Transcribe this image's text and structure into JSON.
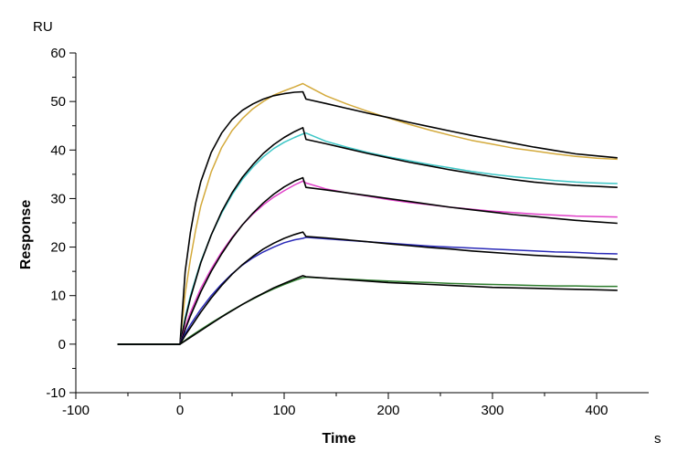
{
  "chart_data": {
    "type": "line",
    "title": "",
    "xlabel": "Time",
    "ylabel": "Response",
    "x_unit": "s",
    "y_unit": "RU",
    "xlim": [
      -100,
      450
    ],
    "ylim": [
      -10,
      60
    ],
    "x_ticks": [
      -100,
      0,
      100,
      200,
      300,
      400
    ],
    "y_ticks": [
      -10,
      0,
      10,
      20,
      30,
      40,
      50,
      60
    ],
    "grid": false,
    "legend": "none",
    "series_style": "sensorgram",
    "series": [
      {
        "color": "#d4aa3c",
        "points": [
          [
            -60,
            0
          ],
          [
            0,
            0
          ],
          [
            5,
            10.5
          ],
          [
            10,
            17.5
          ],
          [
            15,
            23.5
          ],
          [
            20,
            28.5
          ],
          [
            30,
            35.5
          ],
          [
            40,
            40.5
          ],
          [
            50,
            44
          ],
          [
            60,
            46.5
          ],
          [
            70,
            48.5
          ],
          [
            80,
            50
          ],
          [
            90,
            51.3
          ],
          [
            100,
            52.2
          ],
          [
            110,
            53
          ],
          [
            118,
            53.7
          ],
          [
            122,
            53.2
          ],
          [
            140,
            51.2
          ],
          [
            160,
            49.5
          ],
          [
            180,
            48
          ],
          [
            200,
            46.6
          ],
          [
            220,
            45.3
          ],
          [
            240,
            44.1
          ],
          [
            260,
            43
          ],
          [
            280,
            42
          ],
          [
            300,
            41.2
          ],
          [
            320,
            40.4
          ],
          [
            340,
            39.8
          ],
          [
            360,
            39.2
          ],
          [
            380,
            38.7
          ],
          [
            400,
            38.3
          ],
          [
            420,
            38.1
          ]
        ]
      },
      {
        "color": "#000000",
        "points": [
          [
            -60,
            0
          ],
          [
            0,
            0
          ],
          [
            5,
            15
          ],
          [
            10,
            23
          ],
          [
            15,
            29
          ],
          [
            20,
            33.5
          ],
          [
            30,
            39.5
          ],
          [
            40,
            43.5
          ],
          [
            50,
            46.3
          ],
          [
            60,
            48.2
          ],
          [
            70,
            49.5
          ],
          [
            80,
            50.5
          ],
          [
            90,
            51.2
          ],
          [
            100,
            51.6
          ],
          [
            110,
            51.9
          ],
          [
            118,
            52
          ],
          [
            121,
            50.5
          ],
          [
            140,
            49.6
          ],
          [
            160,
            48.6
          ],
          [
            180,
            47.6
          ],
          [
            200,
            46.7
          ],
          [
            220,
            45.7
          ],
          [
            240,
            44.8
          ],
          [
            260,
            43.9
          ],
          [
            280,
            43
          ],
          [
            300,
            42.2
          ],
          [
            320,
            41.4
          ],
          [
            340,
            40.6
          ],
          [
            360,
            39.9
          ],
          [
            380,
            39.2
          ],
          [
            400,
            38.8
          ],
          [
            420,
            38.4
          ]
        ]
      },
      {
        "color": "#3dc6c6",
        "points": [
          [
            -60,
            0
          ],
          [
            0,
            0
          ],
          [
            5,
            5.5
          ],
          [
            10,
            10
          ],
          [
            20,
            17
          ],
          [
            30,
            22.5
          ],
          [
            40,
            27
          ],
          [
            50,
            30.8
          ],
          [
            60,
            34
          ],
          [
            70,
            36.5
          ],
          [
            80,
            38.6
          ],
          [
            90,
            40.3
          ],
          [
            100,
            41.6
          ],
          [
            110,
            42.6
          ],
          [
            118,
            43.3
          ],
          [
            121,
            43.5
          ],
          [
            140,
            41.8
          ],
          [
            160,
            40.6
          ],
          [
            180,
            39.5
          ],
          [
            200,
            38.6
          ],
          [
            220,
            37.8
          ],
          [
            240,
            37
          ],
          [
            260,
            36.3
          ],
          [
            280,
            35.6
          ],
          [
            300,
            35
          ],
          [
            320,
            34.5
          ],
          [
            340,
            34.1
          ],
          [
            360,
            33.7
          ],
          [
            380,
            33.4
          ],
          [
            400,
            33.2
          ],
          [
            420,
            33.1
          ]
        ]
      },
      {
        "color": "#000000",
        "points": [
          [
            -60,
            0
          ],
          [
            0,
            0
          ],
          [
            5,
            5
          ],
          [
            10,
            9.5
          ],
          [
            20,
            16.8
          ],
          [
            30,
            22.5
          ],
          [
            40,
            27.3
          ],
          [
            50,
            31.2
          ],
          [
            60,
            34.4
          ],
          [
            70,
            37
          ],
          [
            80,
            39.3
          ],
          [
            90,
            41.1
          ],
          [
            100,
            42.6
          ],
          [
            110,
            43.8
          ],
          [
            118,
            44.6
          ],
          [
            121,
            42.2
          ],
          [
            140,
            41.3
          ],
          [
            160,
            40.3
          ],
          [
            180,
            39.3
          ],
          [
            200,
            38.4
          ],
          [
            220,
            37.5
          ],
          [
            240,
            36.7
          ],
          [
            260,
            35.9
          ],
          [
            280,
            35.2
          ],
          [
            300,
            34.5
          ],
          [
            320,
            33.9
          ],
          [
            340,
            33.4
          ],
          [
            360,
            33
          ],
          [
            380,
            32.7
          ],
          [
            400,
            32.5
          ],
          [
            420,
            32.3
          ]
        ]
      },
      {
        "color": "#e040c8",
        "points": [
          [
            -60,
            0
          ],
          [
            0,
            0
          ],
          [
            5,
            3.5
          ],
          [
            10,
            6.5
          ],
          [
            20,
            11.5
          ],
          [
            30,
            15.5
          ],
          [
            40,
            19
          ],
          [
            50,
            22
          ],
          [
            60,
            24.6
          ],
          [
            70,
            26.8
          ],
          [
            80,
            28.7
          ],
          [
            90,
            30.3
          ],
          [
            100,
            31.6
          ],
          [
            110,
            32.8
          ],
          [
            118,
            33.6
          ],
          [
            121,
            33.2
          ],
          [
            140,
            32
          ],
          [
            160,
            31.2
          ],
          [
            180,
            30.5
          ],
          [
            200,
            29.8
          ],
          [
            220,
            29.2
          ],
          [
            240,
            28.7
          ],
          [
            260,
            28.2
          ],
          [
            280,
            27.8
          ],
          [
            300,
            27.4
          ],
          [
            320,
            27.1
          ],
          [
            340,
            26.8
          ],
          [
            360,
            26.6
          ],
          [
            380,
            26.4
          ],
          [
            400,
            26.3
          ],
          [
            420,
            26.2
          ]
        ]
      },
      {
        "color": "#000000",
        "points": [
          [
            -60,
            0
          ],
          [
            0,
            0
          ],
          [
            5,
            3
          ],
          [
            10,
            5.8
          ],
          [
            20,
            10.8
          ],
          [
            30,
            15
          ],
          [
            40,
            18.6
          ],
          [
            50,
            21.8
          ],
          [
            60,
            24.6
          ],
          [
            70,
            27
          ],
          [
            80,
            29.1
          ],
          [
            90,
            30.9
          ],
          [
            100,
            32.4
          ],
          [
            110,
            33.6
          ],
          [
            118,
            34.3
          ],
          [
            121,
            32.3
          ],
          [
            140,
            31.8
          ],
          [
            160,
            31.2
          ],
          [
            180,
            30.6
          ],
          [
            200,
            30
          ],
          [
            220,
            29.4
          ],
          [
            240,
            28.8
          ],
          [
            260,
            28.2
          ],
          [
            280,
            27.7
          ],
          [
            300,
            27.2
          ],
          [
            320,
            26.7
          ],
          [
            340,
            26.3
          ],
          [
            360,
            25.9
          ],
          [
            380,
            25.5
          ],
          [
            400,
            25.2
          ],
          [
            420,
            24.9
          ]
        ]
      },
      {
        "color": "#2a2ab8",
        "points": [
          [
            -60,
            0
          ],
          [
            0,
            0
          ],
          [
            5,
            2.2
          ],
          [
            10,
            4
          ],
          [
            20,
            7.2
          ],
          [
            30,
            10
          ],
          [
            40,
            12.4
          ],
          [
            50,
            14.5
          ],
          [
            60,
            16.3
          ],
          [
            70,
            17.8
          ],
          [
            80,
            19
          ],
          [
            90,
            20
          ],
          [
            100,
            20.9
          ],
          [
            110,
            21.5
          ],
          [
            118,
            21.8
          ],
          [
            121,
            22
          ],
          [
            140,
            21.7
          ],
          [
            160,
            21.4
          ],
          [
            180,
            21.1
          ],
          [
            200,
            20.8
          ],
          [
            220,
            20.5
          ],
          [
            240,
            20.2
          ],
          [
            260,
            20
          ],
          [
            280,
            19.8
          ],
          [
            300,
            19.6
          ],
          [
            320,
            19.4
          ],
          [
            340,
            19.2
          ],
          [
            360,
            19
          ],
          [
            380,
            18.9
          ],
          [
            400,
            18.7
          ],
          [
            420,
            18.6
          ]
        ]
      },
      {
        "color": "#000000",
        "points": [
          [
            -60,
            0
          ],
          [
            0,
            0
          ],
          [
            5,
            1.8
          ],
          [
            10,
            3.4
          ],
          [
            20,
            6.6
          ],
          [
            30,
            9.5
          ],
          [
            40,
            12.1
          ],
          [
            50,
            14.4
          ],
          [
            60,
            16.4
          ],
          [
            70,
            18.1
          ],
          [
            80,
            19.6
          ],
          [
            90,
            20.8
          ],
          [
            100,
            21.8
          ],
          [
            110,
            22.6
          ],
          [
            118,
            23.1
          ],
          [
            121,
            22.2
          ],
          [
            140,
            21.9
          ],
          [
            160,
            21.5
          ],
          [
            180,
            21.1
          ],
          [
            200,
            20.7
          ],
          [
            220,
            20.3
          ],
          [
            240,
            19.9
          ],
          [
            260,
            19.6
          ],
          [
            280,
            19.2
          ],
          [
            300,
            18.9
          ],
          [
            320,
            18.6
          ],
          [
            340,
            18.3
          ],
          [
            360,
            18.1
          ],
          [
            380,
            17.9
          ],
          [
            400,
            17.7
          ],
          [
            420,
            17.5
          ]
        ]
      },
      {
        "color": "#2e7d2e",
        "points": [
          [
            -60,
            0
          ],
          [
            0,
            0
          ],
          [
            10,
            1.6
          ],
          [
            20,
            3
          ],
          [
            30,
            4.4
          ],
          [
            40,
            5.7
          ],
          [
            50,
            7
          ],
          [
            60,
            8.2
          ],
          [
            70,
            9.3
          ],
          [
            80,
            10.4
          ],
          [
            90,
            11.4
          ],
          [
            100,
            12.3
          ],
          [
            110,
            13.1
          ],
          [
            118,
            13.7
          ],
          [
            121,
            13.8
          ],
          [
            140,
            13.6
          ],
          [
            160,
            13.4
          ],
          [
            180,
            13.2
          ],
          [
            200,
            13
          ],
          [
            220,
            12.8
          ],
          [
            240,
            12.7
          ],
          [
            260,
            12.5
          ],
          [
            280,
            12.4
          ],
          [
            300,
            12.3
          ],
          [
            320,
            12.2
          ],
          [
            340,
            12.1
          ],
          [
            360,
            12
          ],
          [
            380,
            12
          ],
          [
            400,
            11.9
          ],
          [
            420,
            11.9
          ]
        ]
      },
      {
        "color": "#000000",
        "points": [
          [
            -60,
            0
          ],
          [
            0,
            0
          ],
          [
            10,
            1.4
          ],
          [
            20,
            2.8
          ],
          [
            30,
            4.2
          ],
          [
            40,
            5.6
          ],
          [
            50,
            6.9
          ],
          [
            60,
            8.2
          ],
          [
            70,
            9.4
          ],
          [
            80,
            10.5
          ],
          [
            90,
            11.6
          ],
          [
            100,
            12.5
          ],
          [
            110,
            13.4
          ],
          [
            118,
            14.1
          ],
          [
            121,
            13.9
          ],
          [
            140,
            13.6
          ],
          [
            160,
            13.3
          ],
          [
            180,
            13
          ],
          [
            200,
            12.7
          ],
          [
            220,
            12.5
          ],
          [
            240,
            12.3
          ],
          [
            260,
            12.1
          ],
          [
            280,
            11.9
          ],
          [
            300,
            11.7
          ],
          [
            320,
            11.6
          ],
          [
            340,
            11.5
          ],
          [
            360,
            11.4
          ],
          [
            380,
            11.3
          ],
          [
            400,
            11.2
          ],
          [
            420,
            11.1
          ]
        ]
      }
    ]
  }
}
